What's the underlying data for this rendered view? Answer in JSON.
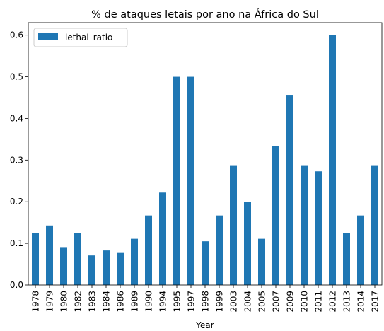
{
  "chart_data": {
    "type": "bar",
    "title": "% de ataques letais por ano na África do Sul",
    "xlabel": "Year",
    "ylabel": "",
    "ylim": [
      0,
      0.63
    ],
    "yticks": [
      "0.0",
      "0.1",
      "0.2",
      "0.3",
      "0.4",
      "0.5",
      "0.6"
    ],
    "legend_placement": "top-left",
    "grid": false,
    "categories": [
      "1978",
      "1979",
      "1980",
      "1982",
      "1983",
      "1984",
      "1986",
      "1989",
      "1990",
      "1994",
      "1995",
      "1997",
      "1998",
      "1999",
      "2003",
      "2004",
      "2005",
      "2007",
      "2009",
      "2010",
      "2011",
      "2012",
      "2013",
      "2014",
      "2017"
    ],
    "series": [
      {
        "name": "lethal_ratio",
        "color": "#1f77b4",
        "values": [
          0.125,
          0.143,
          0.091,
          0.125,
          0.071,
          0.083,
          0.077,
          0.111,
          0.167,
          0.222,
          0.5,
          0.5,
          0.105,
          0.167,
          0.286,
          0.2,
          0.111,
          0.333,
          0.455,
          0.286,
          0.273,
          0.6,
          0.125,
          0.167,
          0.286
        ]
      }
    ]
  }
}
